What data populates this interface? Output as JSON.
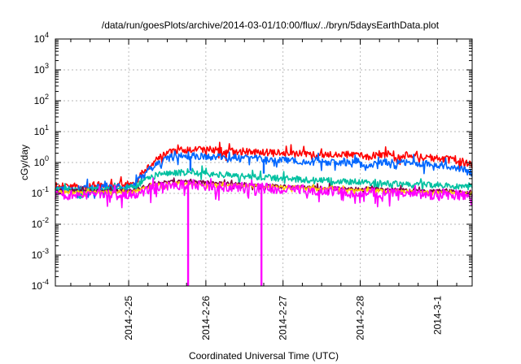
{
  "chart_data": {
    "type": "line",
    "title": "/data/run/goesPlots/archive/2014-03-01/10:00/flux/../bryn/5daysEarthData.plot",
    "xlabel": "Coordinated Universal Time (UTC)",
    "ylabel": "cGy/day",
    "y_scale": "log",
    "ylim": [
      0.0001,
      10000
    ],
    "xlim": [
      24.05,
      29.45
    ],
    "grid": true,
    "legend": "none",
    "yticks": [
      {
        "base": "10",
        "exp": "-4",
        "value": 0.0001
      },
      {
        "base": "10",
        "exp": "-3",
        "value": 0.001
      },
      {
        "base": "10",
        "exp": "-2",
        "value": 0.01
      },
      {
        "base": "10",
        "exp": "-1",
        "value": 0.1
      },
      {
        "base": "10",
        "exp": "0",
        "value": 1
      },
      {
        "base": "10",
        "exp": "1",
        "value": 10
      },
      {
        "base": "10",
        "exp": "2",
        "value": 100
      },
      {
        "base": "10",
        "exp": "3",
        "value": 1000
      },
      {
        "base": "10",
        "exp": "4",
        "value": 10000
      }
    ],
    "xticks": [
      {
        "label": "2014-2-25",
        "value": 25
      },
      {
        "label": "2014-2-26",
        "value": 26
      },
      {
        "label": "2014-2-27",
        "value": 27
      },
      {
        "label": "2014-2-28",
        "value": 28
      },
      {
        "label": "2014-3-1",
        "value": 29
      }
    ],
    "x": [
      24.05,
      24.3,
      24.6,
      24.85,
      25.05,
      25.2,
      25.35,
      25.5,
      25.7,
      25.9,
      26.1,
      26.4,
      26.7,
      27.0,
      27.3,
      27.6,
      27.9,
      28.1,
      28.3,
      28.5,
      28.8,
      29.1,
      29.3,
      29.45
    ],
    "series": [
      {
        "color": "#ff0000",
        "spread": 0.12,
        "values": [
          0.17,
          0.17,
          0.17,
          0.18,
          0.2,
          0.5,
          1.3,
          2.0,
          2.5,
          2.7,
          2.5,
          2.3,
          2.1,
          2.0,
          1.9,
          1.8,
          1.8,
          1.5,
          1.9,
          1.8,
          1.5,
          1.3,
          1.1,
          0.8
        ]
      },
      {
        "color": "#0066ff",
        "spread": 0.12,
        "values": [
          0.15,
          0.15,
          0.15,
          0.16,
          0.17,
          0.4,
          0.9,
          1.4,
          1.6,
          1.6,
          1.5,
          1.4,
          1.3,
          1.2,
          1.1,
          1.05,
          1.0,
          0.8,
          1.1,
          1.0,
          0.9,
          0.8,
          0.65,
          0.45
        ]
      },
      {
        "color": "#00c0a0",
        "spread": 0.1,
        "values": [
          0.13,
          0.13,
          0.13,
          0.14,
          0.15,
          0.25,
          0.38,
          0.45,
          0.48,
          0.46,
          0.42,
          0.38,
          0.34,
          0.3,
          0.28,
          0.26,
          0.24,
          0.22,
          0.21,
          0.2,
          0.19,
          0.18,
          0.17,
          0.16
        ]
      },
      {
        "color": "#800040",
        "spread": 0.06,
        "values": [
          0.12,
          0.12,
          0.12,
          0.12,
          0.12,
          0.17,
          0.21,
          0.23,
          0.24,
          0.23,
          0.22,
          0.2,
          0.18,
          0.17,
          0.16,
          0.15,
          0.14,
          0.14,
          0.13,
          0.13,
          0.12,
          0.12,
          0.11,
          0.11
        ]
      },
      {
        "color": "#ffd000",
        "spread": 0.05,
        "values": [
          0.11,
          0.11,
          0.11,
          0.11,
          0.11,
          0.15,
          0.18,
          0.2,
          0.21,
          0.2,
          0.19,
          0.18,
          0.17,
          0.16,
          0.15,
          0.14,
          0.13,
          0.13,
          0.12,
          0.12,
          0.11,
          0.11,
          0.1,
          0.1
        ]
      },
      {
        "color": "#ff00ff",
        "spread": 0.16,
        "values": [
          0.09,
          0.09,
          0.09,
          0.09,
          0.09,
          0.12,
          0.16,
          0.18,
          0.19,
          0.18,
          0.17,
          0.16,
          0.15,
          0.14,
          0.13,
          0.12,
          0.11,
          0.11,
          0.1,
          0.1,
          0.09,
          0.09,
          0.09,
          0.08
        ]
      }
    ],
    "dropouts": [
      {
        "x": 25.77,
        "series_color": "#ff00ff"
      },
      {
        "x": 26.72,
        "series_color": "#ff00ff"
      },
      {
        "x": 25.8,
        "series_color": "#0066ff"
      },
      {
        "x": 26.75,
        "series_color": "#0066ff"
      }
    ]
  }
}
